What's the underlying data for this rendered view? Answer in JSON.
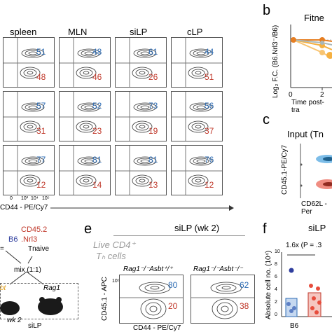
{
  "colors": {
    "top_value": "#2f6db4",
    "bottom_value": "#c0392b",
    "rag_label": "#e0a020",
    "cd45": "#c0392b"
  },
  "panel_a": {
    "columns": [
      "spleen",
      "MLN",
      "siLP",
      "cLP"
    ],
    "rows": [
      {
        "top": [
          "51",
          "48",
          "61",
          "44"
        ],
        "bottom": [
          "48",
          "46",
          "26",
          "51"
        ]
      },
      {
        "top": [
          "57",
          "52",
          "73",
          "56"
        ],
        "bottom": [
          "31",
          "23",
          "19",
          "37"
        ]
      },
      {
        "top": [
          "77",
          "81",
          "81",
          "76"
        ],
        "bottom": [
          "12",
          "14",
          "13",
          "12"
        ]
      }
    ],
    "x_axis_label": "CD44 - PE/Cy7",
    "x_ticks": [
      "0",
      "10³",
      "10⁴",
      "10⁵"
    ]
  },
  "panel_b": {
    "letter": "b",
    "title": "Fitne",
    "ylabel": "Log₂ F.C. (B6.Nrl3⁻/B6)",
    "x_ticks": [
      "0",
      "2"
    ],
    "xlabel": "Time post-tra"
  },
  "panel_c": {
    "letter": "c",
    "title": "Input (Tn",
    "ylabel": "CD45.1-PE/Cy7",
    "xlabel": "CD62L - Per"
  },
  "panel_d": {
    "cd45_label": "CD45.2",
    "b6_label": "B6",
    "nrl_label": ".Nrl3",
    "tnaive_label": "Tnaive",
    "mix_label": "mix (1:1)",
    "rag_label": "Rag1",
    "wk_label": "wk 2",
    "silp_label": "siLP",
    "prefix_left": "=",
    "rag_partial": "bt"
  },
  "panel_e": {
    "letter": "e",
    "title": "siLP (wk 2)",
    "subtitle_1": "Live CD4⁺",
    "subtitle_2": "Tₕ cells",
    "plot1_label": "Rag1⁻/⁻Asbt⁺/⁺",
    "plot2_label": "Rag1⁻/⁻Asbt⁻/⁻",
    "ylabel": "CD45.1 - APC",
    "xlabel": "CD44 - PE/Cy7",
    "plot1_top": "80",
    "plot1_bottom": "20",
    "plot2_top": "62",
    "plot2_bottom": "38"
  },
  "panel_f": {
    "letter": "f",
    "title": "siLP",
    "stat": "1.6x (P = .3",
    "ylabel": "Absolute cell no. (10⁴)",
    "y_ticks": [
      "10",
      "8",
      "6",
      "4",
      "2",
      "0"
    ],
    "x_label": "B6"
  }
}
